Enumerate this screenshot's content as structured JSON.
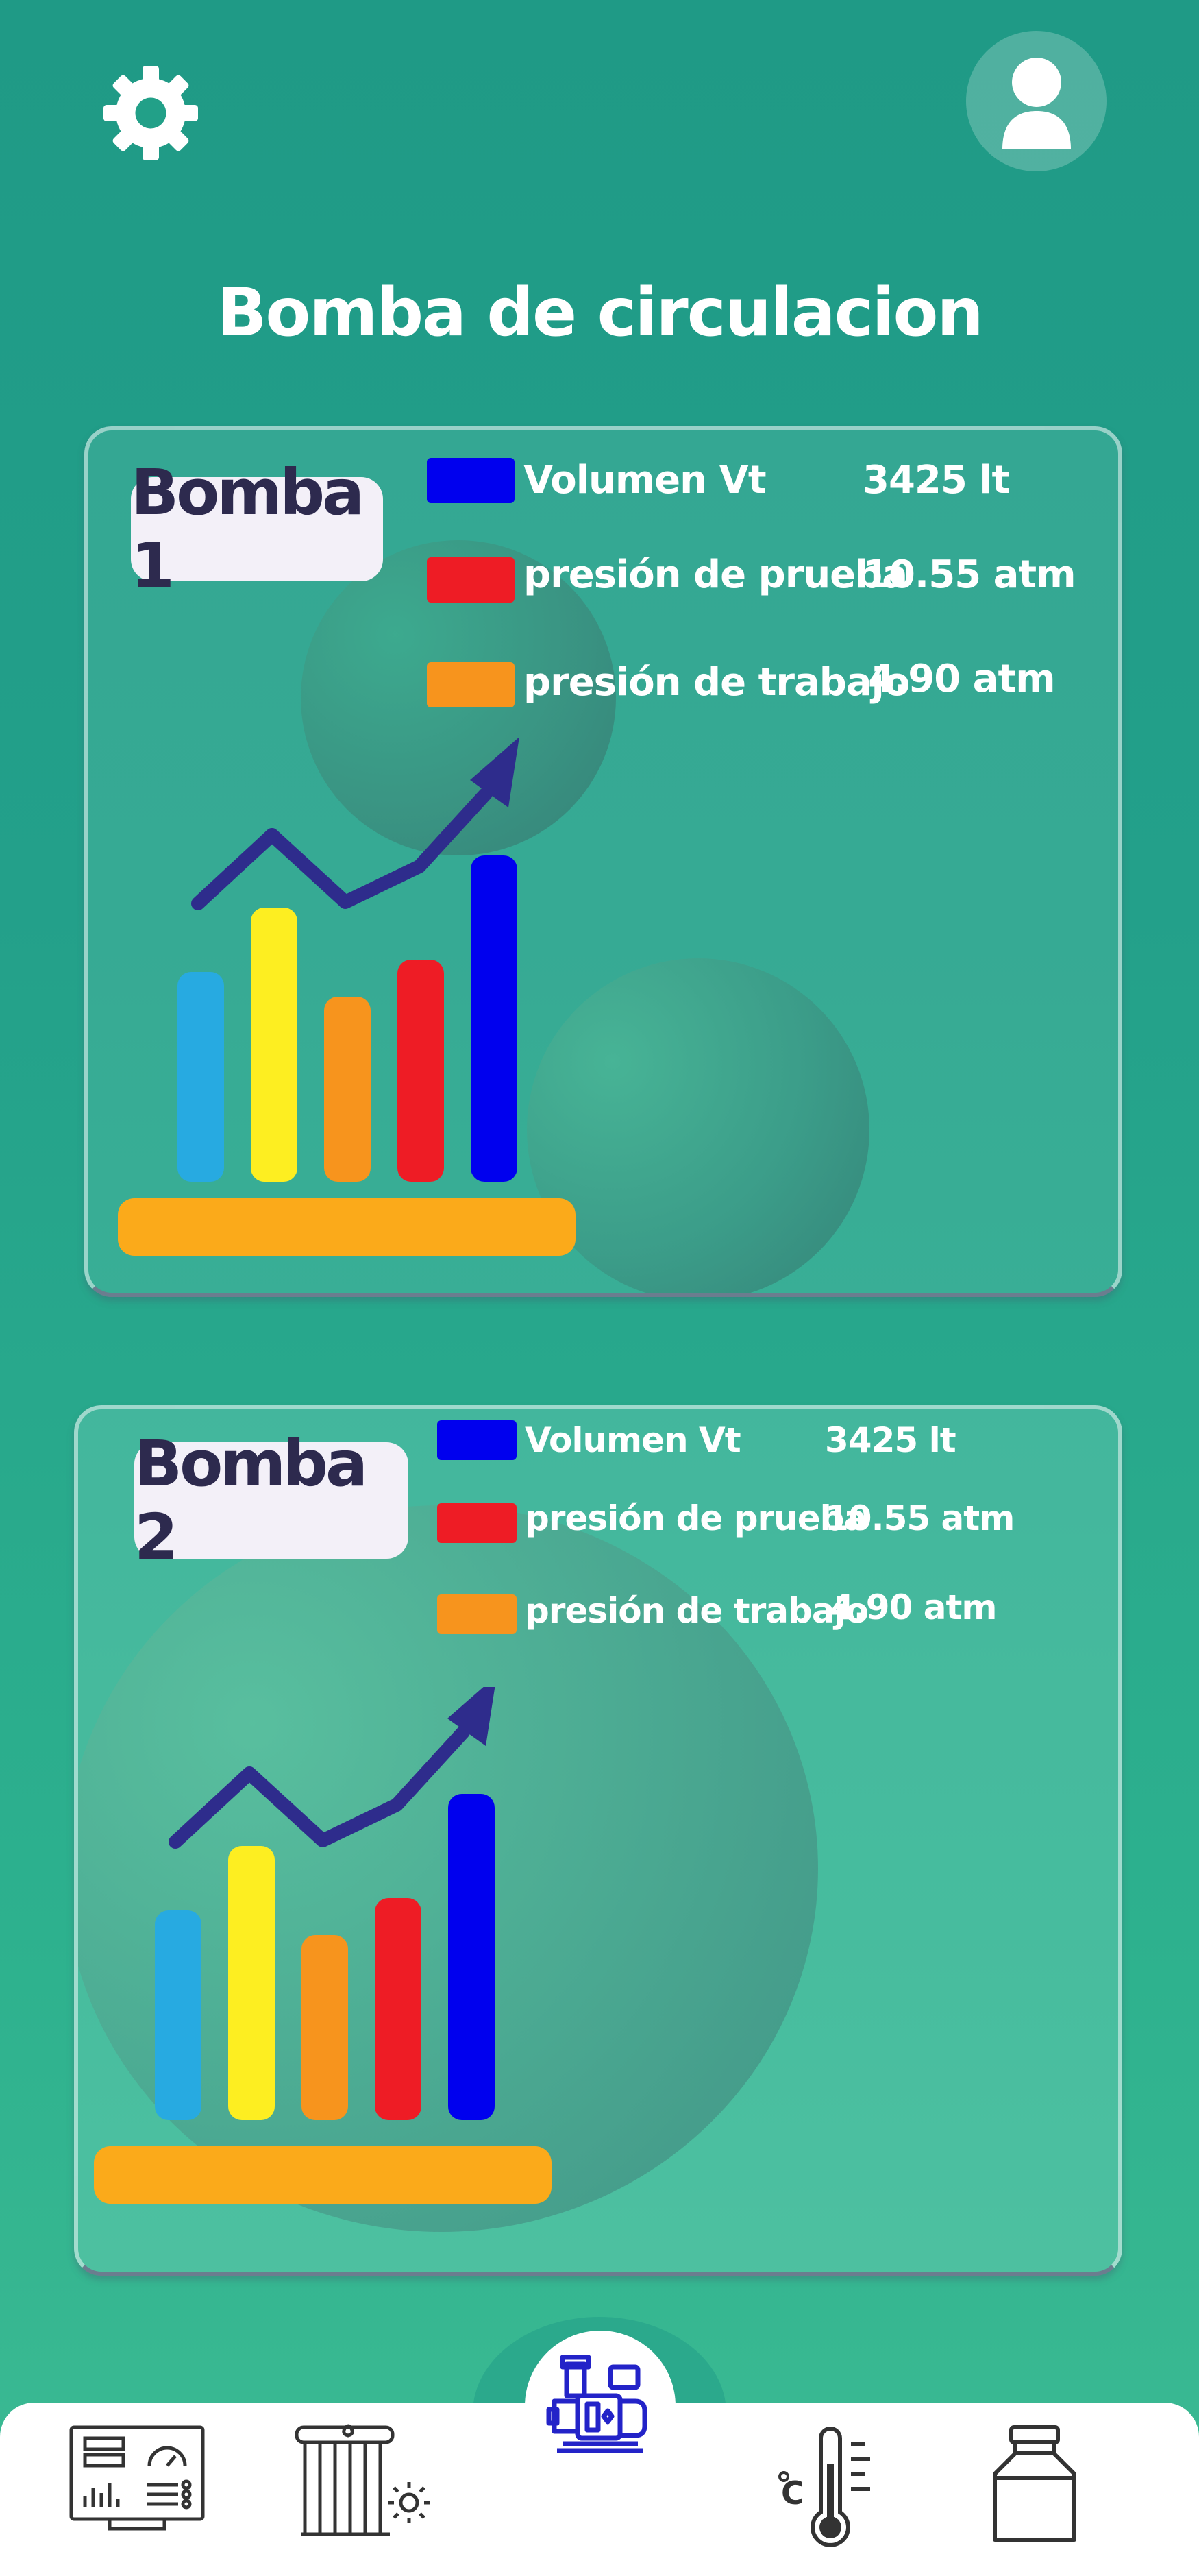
{
  "header": {
    "settings_icon": "gear-icon",
    "profile_icon": "user-icon",
    "title": "Bomba de circulacion"
  },
  "cards": [
    {
      "name": "Bomba 1",
      "metrics": [
        {
          "label": "Volumen Vt",
          "value": "3425 lt",
          "color": "#0000ee"
        },
        {
          "label": "presión de prueba",
          "value": "10.55 atm",
          "color": "#ee1c25"
        },
        {
          "label": "presión de trabajo",
          "value": "4.90 atm",
          "color": "#f7941d"
        }
      ],
      "illustration": "bar-chart-growth-icon"
    },
    {
      "name": "Bomba 2",
      "metrics": [
        {
          "label": "Volumen Vt",
          "value": "3425 lt",
          "color": "#0000ee"
        },
        {
          "label": "presión de prueba",
          "value": "10.55 atm",
          "color": "#ee1c25"
        },
        {
          "label": "presión de trabajo",
          "value": "4.90 atm",
          "color": "#f7941d"
        }
      ],
      "illustration": "bar-chart-growth-icon"
    }
  ],
  "bottom_nav": {
    "items": [
      {
        "icon": "control-panel-icon",
        "active": false
      },
      {
        "icon": "solar-water-heater-icon",
        "active": false
      },
      {
        "icon": "circulation-pump-icon",
        "active": true
      },
      {
        "icon": "thermometer-celsius-icon",
        "active": false
      },
      {
        "icon": "tank-icon",
        "active": false
      }
    ],
    "accent_color": "#2323c8"
  },
  "colors": {
    "background": "#23a08a",
    "title": "#ffffff",
    "badge_text": "#2d2a4e",
    "arrow": "#2e2c8c"
  }
}
